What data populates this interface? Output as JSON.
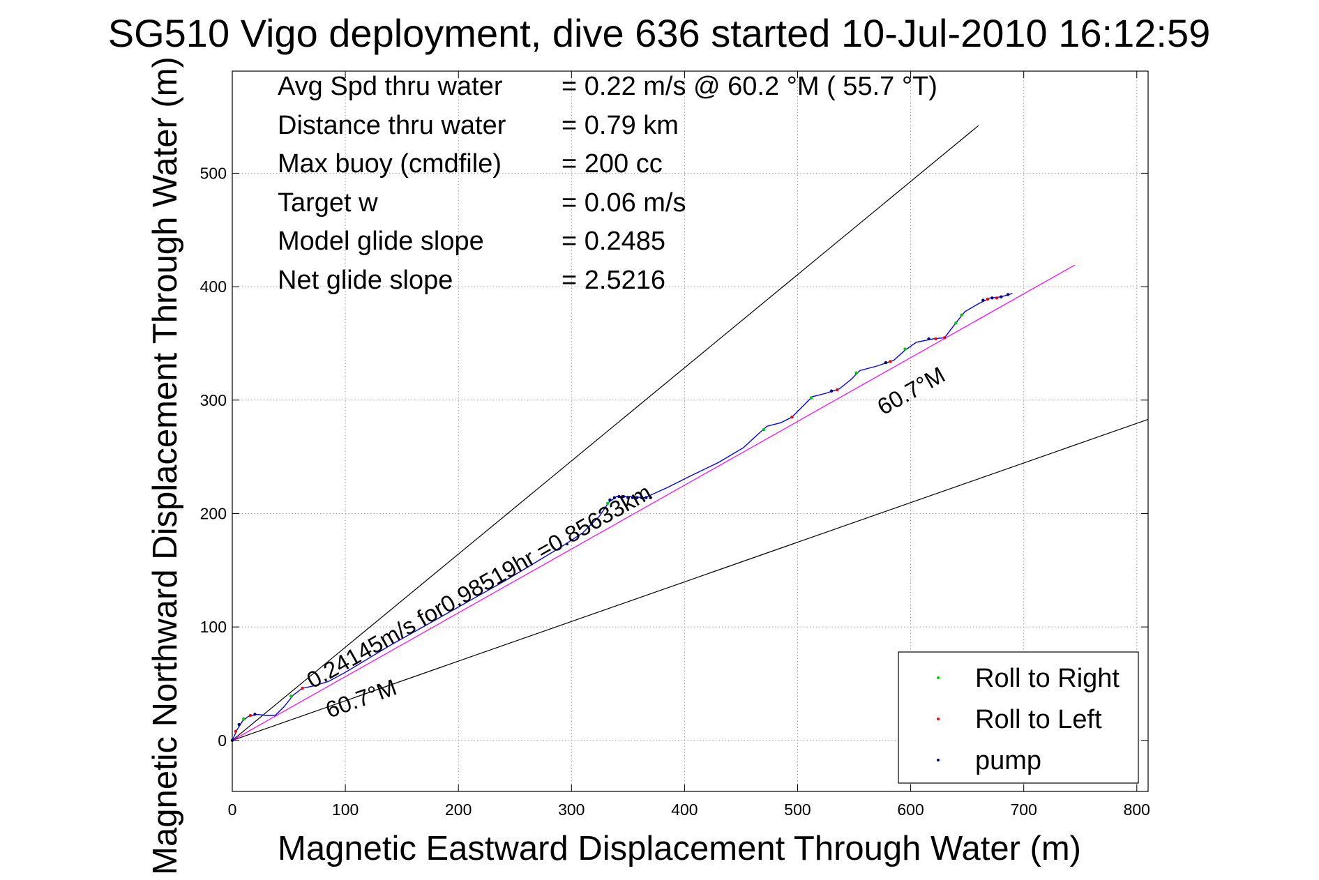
{
  "chart_data": {
    "type": "line",
    "title": "SG510 Vigo deployment, dive 636 started 10-Jul-2010 16:12:59",
    "xlabel": "Magnetic Eastward Displacement Through Water (m)",
    "ylabel": "Magnetic Northward Displacement Through Water (m)",
    "xlim": [
      0,
      810
    ],
    "ylim": [
      -45,
      590
    ],
    "xticks": [
      0,
      100,
      200,
      300,
      400,
      500,
      600,
      700,
      800
    ],
    "yticks": [
      0,
      100,
      200,
      300,
      400,
      500
    ],
    "xtick_labels": [
      "0",
      "100",
      "200",
      "300",
      "400",
      "500",
      "600",
      "700",
      "800"
    ],
    "ytick_labels": [
      "0",
      "100",
      "200",
      "300",
      "400",
      "500"
    ],
    "grid": true,
    "stats": [
      {
        "label": "Avg Spd thru water",
        "value": "=  0.22 m/s @  60.2 °M ( 55.7 °T)"
      },
      {
        "label": "Distance thru water",
        "value": "=  0.79 km"
      },
      {
        "label": "Max buoy (cmdfile)",
        "value": "= 200 cc"
      },
      {
        "label": "Target w",
        "value": "= 0.06 m/s"
      },
      {
        "label": "Model glide slope",
        "value": "= 0.2485"
      },
      {
        "label": "Net glide slope",
        "value": "= 2.5216"
      }
    ],
    "annotations": {
      "speed": "0.24145m/s for0.98519hr =0.85633km",
      "heading_lower": "60.7°M",
      "heading_upper": "60.7°M"
    },
    "reference_lines": [
      {
        "color": "#000000",
        "points": [
          [
            0,
            0
          ],
          [
            660,
            542
          ]
        ]
      },
      {
        "color": "#000000",
        "points": [
          [
            0,
            0
          ],
          [
            810,
            283
          ]
        ]
      },
      {
        "color": "#ff00ff",
        "points": [
          [
            0,
            0
          ],
          [
            745,
            419
          ]
        ]
      }
    ],
    "track": {
      "color": "#0000ff",
      "points": [
        [
          0,
          0
        ],
        [
          4,
          9
        ],
        [
          9,
          17
        ],
        [
          14,
          21
        ],
        [
          22,
          23
        ],
        [
          30,
          22
        ],
        [
          38,
          22
        ],
        [
          46,
          30
        ],
        [
          54,
          40
        ],
        [
          62,
          46
        ],
        [
          72,
          48
        ],
        [
          85,
          52
        ],
        [
          100,
          60
        ],
        [
          120,
          72
        ],
        [
          140,
          84
        ],
        [
          165,
          98
        ],
        [
          190,
          112
        ],
        [
          215,
          126
        ],
        [
          240,
          140
        ],
        [
          265,
          155
        ],
        [
          290,
          170
        ],
        [
          310,
          183
        ],
        [
          325,
          198
        ],
        [
          333,
          210
        ],
        [
          340,
          215
        ],
        [
          350,
          215
        ],
        [
          365,
          214
        ],
        [
          385,
          223
        ],
        [
          405,
          233
        ],
        [
          430,
          245
        ],
        [
          452,
          258
        ],
        [
          465,
          270
        ],
        [
          473,
          277
        ],
        [
          485,
          280
        ],
        [
          495,
          285
        ],
        [
          505,
          295
        ],
        [
          513,
          303
        ],
        [
          525,
          306
        ],
        [
          537,
          310
        ],
        [
          547,
          318
        ],
        [
          555,
          326
        ],
        [
          570,
          330
        ],
        [
          585,
          335
        ],
        [
          595,
          344
        ],
        [
          605,
          351
        ],
        [
          620,
          354
        ],
        [
          630,
          355
        ],
        [
          640,
          368
        ],
        [
          648,
          378
        ],
        [
          660,
          385
        ],
        [
          670,
          390
        ],
        [
          680,
          391
        ],
        [
          690,
          394
        ]
      ]
    },
    "series": [
      {
        "name": "Roll to Right",
        "color": "#00cc00",
        "points": [
          [
            10,
            19
          ],
          [
            52,
            39
          ],
          [
            332,
            209
          ],
          [
            470,
            274
          ],
          [
            512,
            302
          ],
          [
            552,
            324
          ],
          [
            595,
            345
          ],
          [
            640,
            368
          ],
          [
            645,
            375
          ]
        ]
      },
      {
        "name": "Roll to Left",
        "color": "#ff0000",
        "points": [
          [
            3,
            8
          ],
          [
            16,
            22
          ],
          [
            62,
            46
          ],
          [
            345,
            215
          ],
          [
            495,
            285
          ],
          [
            535,
            309
          ],
          [
            582,
            334
          ],
          [
            622,
            354
          ],
          [
            630,
            355
          ],
          [
            668,
            389
          ],
          [
            676,
            390
          ]
        ]
      },
      {
        "name": "pump",
        "color": "#000080",
        "points": [
          [
            0,
            0
          ],
          [
            6,
            14
          ],
          [
            20,
            23
          ],
          [
            334,
            212
          ],
          [
            338,
            214
          ],
          [
            342,
            215
          ],
          [
            346,
            215
          ],
          [
            350,
            214
          ],
          [
            354,
            214
          ],
          [
            358,
            214
          ],
          [
            362,
            214
          ],
          [
            366,
            214
          ],
          [
            370,
            214
          ],
          [
            530,
            308
          ],
          [
            578,
            333
          ],
          [
            616,
            354
          ],
          [
            664,
            388
          ],
          [
            672,
            390
          ],
          [
            680,
            391
          ],
          [
            686,
            393
          ]
        ]
      }
    ]
  }
}
